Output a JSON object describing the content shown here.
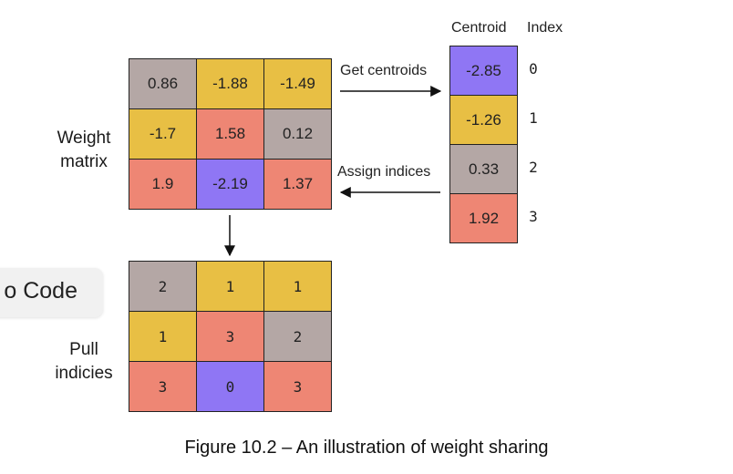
{
  "weight_matrix": {
    "label_lines": [
      "Weight",
      "matrix"
    ],
    "rows": [
      [
        "0.86",
        "-1.88",
        "-1.49"
      ],
      [
        "-1.7",
        "1.58",
        "0.12"
      ],
      [
        "1.9",
        "-2.19",
        "1.37"
      ]
    ],
    "colors": [
      [
        "#b4a7a5",
        "#e8bf44",
        "#e8bf44"
      ],
      [
        "#e8bf44",
        "#ee8674",
        "#b4a7a5"
      ],
      [
        "#ee8674",
        "#8f76f4",
        "#ee8674"
      ]
    ]
  },
  "codebook": {
    "header_centroid": "Centroid",
    "header_index": "Index",
    "centroids": [
      "-2.85",
      "-1.26",
      "0.33",
      "1.92"
    ],
    "indices": [
      "0",
      "1",
      "2",
      "3"
    ],
    "colors": [
      "#8f76f4",
      "#e8bf44",
      "#b4a7a5",
      "#ee8674"
    ]
  },
  "index_matrix": {
    "label_lines": [
      "Pull",
      "indicies"
    ],
    "rows": [
      [
        "2",
        "1",
        "1"
      ],
      [
        "1",
        "3",
        "2"
      ],
      [
        "3",
        "0",
        "3"
      ]
    ],
    "colors": [
      [
        "#b4a7a5",
        "#e8bf44",
        "#e8bf44"
      ],
      [
        "#e8bf44",
        "#ee8674",
        "#b4a7a5"
      ],
      [
        "#ee8674",
        "#8f76f4",
        "#ee8674"
      ]
    ]
  },
  "arrows": {
    "get_centroids": "Get centroids",
    "assign_indices": "Assign indices"
  },
  "overlay": {
    "code_label": "o Code"
  },
  "caption": "Figure 10.2 – An illustration of weight sharing"
}
